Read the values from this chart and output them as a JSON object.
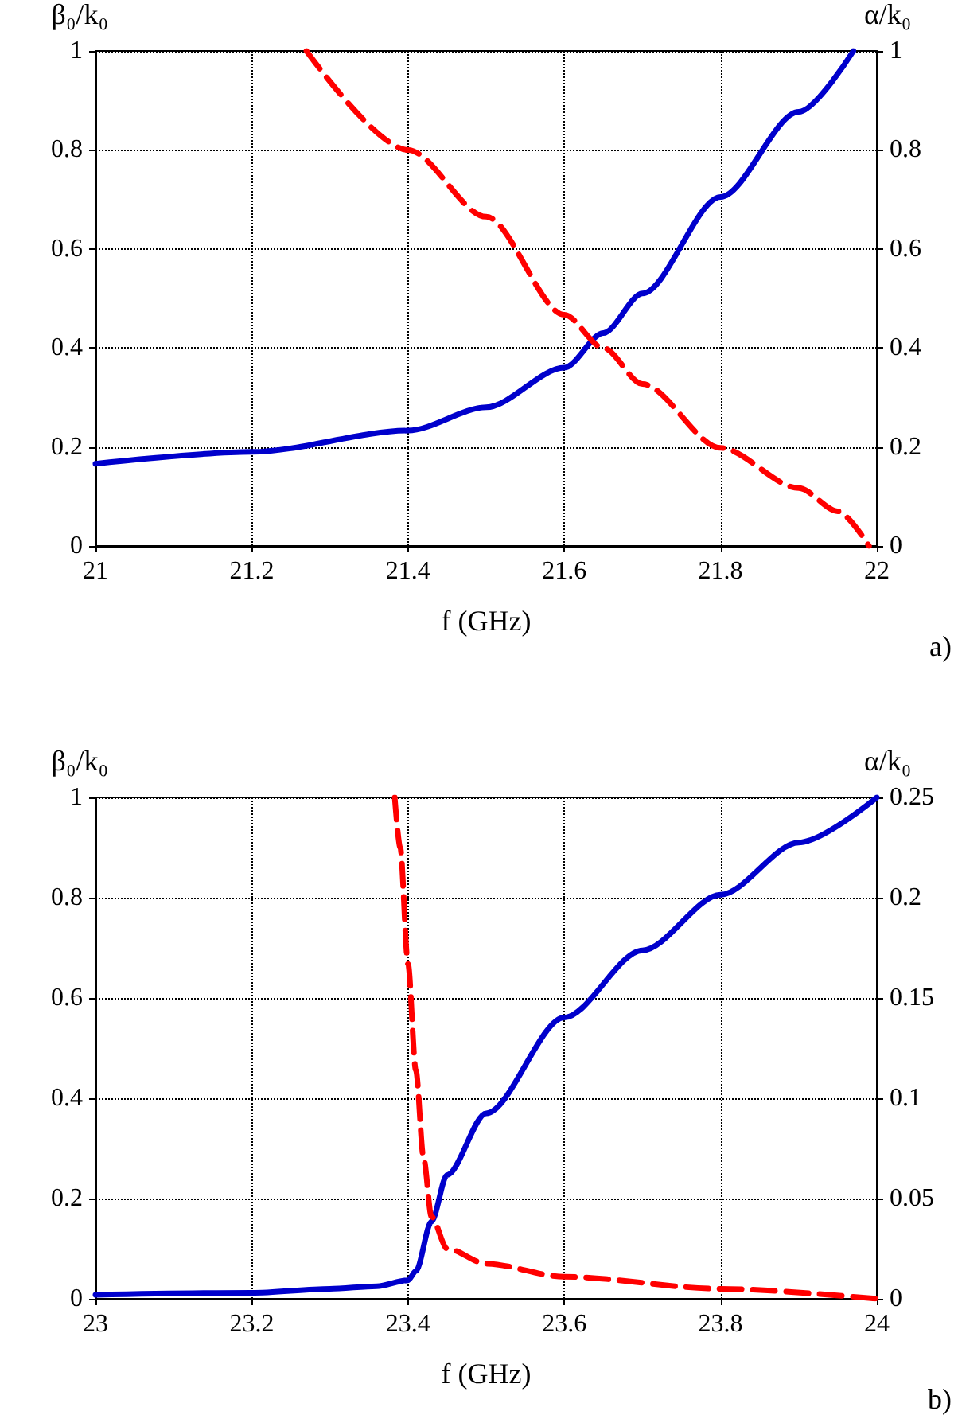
{
  "chart_data": [
    {
      "type": "line",
      "xlabel": "f (GHz)",
      "ylabel": "β₀/k₀",
      "y2label": "α/k₀",
      "annotations": [
        "a)"
      ],
      "grid": true,
      "xlim": [
        21,
        22
      ],
      "xticks": [
        21,
        21.2,
        21.4,
        21.6,
        21.8,
        22
      ],
      "ylim": [
        0,
        1
      ],
      "yticks": [
        0,
        0.2,
        0.4,
        0.6,
        0.8,
        1
      ],
      "y2lim": [
        0,
        1
      ],
      "y2ticks": [
        0,
        0.2,
        0.4,
        0.6,
        0.8,
        1
      ],
      "series": [
        {
          "color": "#0000cc",
          "line_style": "solid",
          "x": [
            21,
            21.2,
            21.4,
            21.5,
            21.6,
            21.65,
            21.7,
            21.8,
            21.9,
            21.97
          ],
          "values": [
            0.166,
            0.19,
            0.233,
            0.28,
            0.36,
            0.43,
            0.51,
            0.705,
            0.877,
            1
          ]
        },
        {
          "color": "#ff0000",
          "line_style": "dashed",
          "axis": "y2",
          "x": [
            21.27,
            21.4,
            21.5,
            21.6,
            21.65,
            21.7,
            21.8,
            21.9,
            21.95,
            21.99
          ],
          "values": [
            1,
            0.8,
            0.665,
            0.467,
            0.4,
            0.327,
            0.198,
            0.117,
            0.07,
            0
          ]
        }
      ]
    },
    {
      "type": "line",
      "xlabel": "f (GHz)",
      "ylabel": "β₀/k₀",
      "y2label": "α/k₀",
      "annotations": [
        "b)"
      ],
      "grid": true,
      "xlim": [
        23,
        24
      ],
      "xticks": [
        23,
        23.2,
        23.4,
        23.6,
        23.8,
        24
      ],
      "ylim": [
        0,
        1
      ],
      "yticks": [
        0,
        0.2,
        0.4,
        0.6,
        0.8,
        1
      ],
      "y2lim": [
        0,
        0.25
      ],
      "y2ticks": [
        0,
        0.05,
        0.1,
        0.15,
        0.2,
        0.25
      ],
      "series": [
        {
          "color": "#0000cc",
          "line_style": "solid",
          "x": [
            23,
            23.2,
            23.3,
            23.36,
            23.4,
            23.41,
            23.43,
            23.45,
            23.5,
            23.6,
            23.7,
            23.8,
            23.9,
            24
          ],
          "values": [
            0.008,
            0.012,
            0.02,
            0.025,
            0.037,
            0.055,
            0.154,
            0.247,
            0.37,
            0.561,
            0.695,
            0.806,
            0.91,
            1
          ]
        },
        {
          "color": "#ff0000",
          "line_style": "dashed",
          "axis": "y2",
          "x": [
            23.383,
            23.39,
            23.4,
            23.41,
            23.42,
            23.43,
            23.45,
            23.5,
            23.6,
            23.8,
            24
          ],
          "values": [
            0.25,
            0.225,
            0.167,
            0.114,
            0.07,
            0.041,
            0.025,
            0.0175,
            0.011,
            0.005,
            0
          ]
        }
      ]
    }
  ]
}
